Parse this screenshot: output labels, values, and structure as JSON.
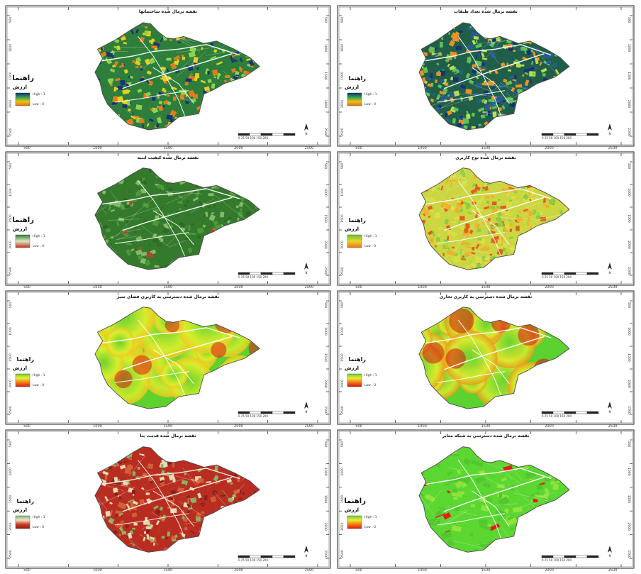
{
  "figure": {
    "panels": [
      {
        "id": "p1",
        "title": "نقشه نرمال شده ساختمانها",
        "legend_heading": "راهنما",
        "legend_subheading": "ارزش",
        "legend_high": "High : 1",
        "legend_low": "Low : 0",
        "ramp": [
          "#0b2f6b",
          "#2f9e5a",
          "#e7c80f",
          "#e86a12"
        ],
        "base_fill": "#2d7e3a",
        "patch_colors": [
          "#17356f",
          "#2c7d38",
          "#8fd14f",
          "#e8cf1b",
          "#e57b18"
        ],
        "density": "high",
        "scale_text": "0 25 50 100 150 200",
        "axis_ticks": [
          "500",
          "1000",
          "1500",
          "2000",
          "2500"
        ]
      },
      {
        "id": "p2",
        "title": "نقشه نرمال شده تعداد طبقات",
        "legend_heading": "راهنما",
        "legend_subheading": "ارزش",
        "legend_high": "High : 1",
        "legend_low": "Low : 0",
        "ramp": [
          "#0b2f6b",
          "#2f9e5a",
          "#e7c80f",
          "#e86a12"
        ],
        "base_fill": "#1f5f49",
        "patch_colors": [
          "#14346e",
          "#245a9a",
          "#5fc253",
          "#b7dd4d",
          "#f09021"
        ],
        "density": "high",
        "scale_text": "0 25 50 100 150 200",
        "axis_ticks": [
          "500",
          "1000",
          "1500",
          "2000",
          "2500"
        ]
      },
      {
        "id": "p3",
        "title": "نقشه نرمال شده کیفیت ابنیه",
        "legend_heading": "راهنما",
        "legend_subheading": "ارزش",
        "legend_high": "High : 1",
        "legend_low": "Low : 0",
        "ramp": [
          "#2f7f33",
          "#dde7c3",
          "#c62d1c"
        ],
        "base_fill": "#347a2c",
        "patch_colors": [
          "#2c6d23",
          "#4c9a36",
          "#83b96a",
          "#c8382b"
        ],
        "density": "medium",
        "scale_text": "0 25 50 100 150 200",
        "axis_ticks": [
          "500",
          "1000",
          "1500",
          "2000",
          "2500"
        ]
      },
      {
        "id": "p4",
        "title": "نقشه نرمال شده نوع کاربری",
        "legend_heading": "راهنما",
        "legend_subheading": "ارزش",
        "legend_high": "High : 1",
        "legend_low": "Low : 0",
        "ramp": [
          "#69c234",
          "#ecd72a",
          "#ee6d19"
        ],
        "base_fill": "#cbd640",
        "patch_colors": [
          "#89cf3d",
          "#d8df42",
          "#edb129",
          "#e45d1a"
        ],
        "density": "high",
        "scale_text": "0 25 50 100 150 200",
        "axis_ticks": [
          "500",
          "1000",
          "1500",
          "2000",
          "2500"
        ]
      },
      {
        "id": "p5",
        "title": "نقشه نرمال شده دسترسی به کاربری فضای سبز",
        "legend_heading": "راهنما",
        "legend_subheading": "ارزش",
        "legend_high": "High : 1",
        "legend_low": "Low : 0",
        "ramp": [
          "#63d52e",
          "#f3ed35",
          "#ef7d18",
          "#dd1c12"
        ],
        "base_fill": "#6fdb39",
        "patch_colors": [
          "#5dd12e",
          "#d8ef2d",
          "#f6bf1f",
          "#ea5a16"
        ],
        "density": "smooth",
        "scale_text": "0 25 50 100 150 200",
        "axis_ticks": [
          "500",
          "1000",
          "1500",
          "2000",
          "2500"
        ]
      },
      {
        "id": "p6",
        "title": "نقشه نرمال شده دسترسی به کاربری تجاری",
        "legend_heading": "راهنما",
        "legend_subheading": "ارزش",
        "legend_high": "High : 1",
        "legend_low": "Low : 0",
        "ramp": [
          "#5fd431",
          "#f0ea33",
          "#ef7716",
          "#d7120f"
        ],
        "base_fill": "#61d431",
        "patch_colors": [
          "#5bd22f",
          "#d9ec2f",
          "#ef8e19",
          "#dc1612"
        ],
        "density": "smooth",
        "scale_text": "0 25 50 100 150 200",
        "axis_ticks": [
          "500",
          "1000",
          "1500",
          "2000",
          "2500"
        ]
      },
      {
        "id": "p7",
        "title": "نقشه نرمال شده قدمت بنا",
        "legend_heading": "راهنما",
        "legend_subheading": "ارزش",
        "legend_high": "High : 1",
        "legend_low": "Low : 0",
        "ramp": [
          "#7fb57c",
          "#f0e3c2",
          "#ca3d24",
          "#8f1d12"
        ],
        "base_fill": "#b92d21",
        "patch_colors": [
          "#8e1f15",
          "#b52f1f",
          "#d25f35",
          "#e9d8b3",
          "#86b55f"
        ],
        "density": "high",
        "scale_text": "0 25 50 100 150 200",
        "axis_ticks": [
          "500",
          "1000",
          "1500",
          "2000",
          "2500"
        ]
      },
      {
        "id": "p8",
        "title": "نقشه نرمال شده دسترسی به شبکه معابر",
        "legend_heading": "راهنما",
        "legend_subheading": "ارزش",
        "legend_high": "High : 1",
        "legend_low": "Low : 0",
        "ramp": [
          "#5fd232",
          "#f1ec31",
          "#ef7c15",
          "#dd1711"
        ],
        "base_fill": "#5bd731",
        "patch_colors": [
          "#50c82e",
          "#8ee538",
          "#ea1a17"
        ],
        "density": "sparse",
        "scale_text": "0 25 50 100 150 200",
        "axis_ticks": [
          "500",
          "1000",
          "1500",
          "2000",
          "2500"
        ]
      }
    ]
  }
}
